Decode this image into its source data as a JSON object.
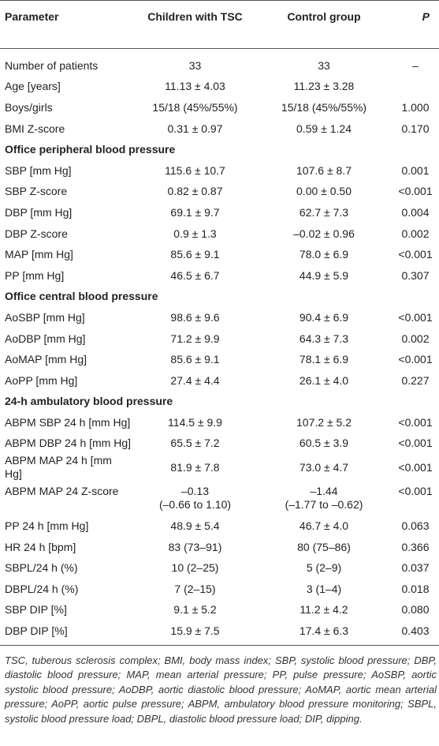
{
  "table": {
    "header": [
      "Parameter",
      "Children with TSC",
      "Control group",
      "P"
    ],
    "rows": [
      [
        "Number of patients",
        "33",
        "33",
        "–"
      ],
      [
        "Age [years]",
        "11.13 ± 4.03",
        "11.23 ± 3.28",
        ""
      ],
      [
        "Boys/girls",
        "15/18 (45%/55%)",
        "15/18 (45%/55%)",
        "1.000"
      ],
      [
        "BMI Z-score",
        "0.31 ± 0.97",
        "0.59 ± 1.24",
        "0.170"
      ],
      {
        "section": "Office peripheral blood pressure"
      },
      [
        "SBP [mm Hg]",
        "115.6 ± 10.7",
        "107.6 ± 8.7",
        "0.001"
      ],
      [
        "SBP Z-score",
        "0.82 ± 0.87",
        "0.00 ± 0.50",
        "<0.001"
      ],
      [
        "DBP [mm Hg]",
        "69.1 ± 9.7",
        "62.7 ± 7.3",
        "0.004"
      ],
      [
        "DBP Z-score",
        "0.9 ± 1.3",
        "–0.02 ± 0.96",
        "0.002"
      ],
      [
        "MAP [mm Hg]",
        "85.6 ± 9.1",
        "78.0 ± 6.9",
        "<0.001"
      ],
      [
        "PP [mm Hg]",
        "46.5 ± 6.7",
        "44.9 ± 5.9",
        "0.307"
      ],
      {
        "section": "Office central blood pressure"
      },
      [
        "AoSBP [mm Hg]",
        "98.6 ± 9.6",
        "90.4 ± 6.9",
        "<0.001"
      ],
      [
        "AoDBP [mm Hg]",
        "71.2 ± 9.9",
        "64.3 ± 7.3",
        "0.002"
      ],
      [
        "AoMAP [mm Hg]",
        "85.6 ± 9.1",
        "78.1 ± 6.9",
        "<0.001"
      ],
      [
        "AoPP [mm Hg]",
        "27.4 ± 4.4",
        "26.1 ± 4.0",
        "0.227"
      ],
      {
        "section": "24-h ambulatory blood pressure"
      },
      [
        "ABPM SBP 24 h [mm Hg]",
        "114.5 ± 9.9",
        "107.2 ± 5.2",
        "<0.001"
      ],
      [
        "ABPM DBP 24 h [mm Hg]",
        "65.5 ± 7.2",
        "60.5 ± 3.9",
        "<0.001"
      ],
      [
        "ABPM MAP 24 h [mm Hg]",
        "81.9 ± 7.8",
        "73.0 ± 4.7",
        "<0.001"
      ],
      [
        "ABPM MAP 24 Z-score",
        "–0.13\n(–0.66 to 1.10)",
        "–1.44\n(–1.77 to –0.62)",
        "<0.001"
      ],
      [
        "PP 24 h [mm Hg]",
        "48.9 ± 5.4",
        "46.7 ± 4.0",
        "0.063"
      ],
      [
        "HR 24 h [bpm]",
        "83 (73–91)",
        "80 (75–86)",
        "0.366"
      ],
      [
        "SBPL/24 h (%)",
        "10 (2–25)",
        "5 (2–9)",
        "0.037"
      ],
      [
        "DBPL/24 h (%)",
        "7 (2–15)",
        "3 (1–4)",
        "0.018"
      ],
      [
        "SBP DIP [%]",
        "9.1 ± 5.2",
        "11.2 ± 4.2",
        "0.080"
      ],
      [
        "DBP DIP [%]",
        "15.9 ± 7.5",
        "17.4 ± 6.3",
        "0.403"
      ]
    ],
    "footnote": "TSC, tuberous sclerosis complex; BMI, body mass index; SBP, systolic blood pressure; DBP, diastolic blood pressure; MAP, mean arterial pressure; PP, pulse pressure; AoSBP, aortic systolic blood pressure; AoDBP, aortic diastolic blood pressure; AoMAP, aortic mean arterial pressure; AoPP, aortic pulse pressure; ABPM, ambulatory blood pressure monitoring; SBPL, systolic blood pressure load; DBPL, diastolic blood pressure load; DIP, dipping."
  }
}
